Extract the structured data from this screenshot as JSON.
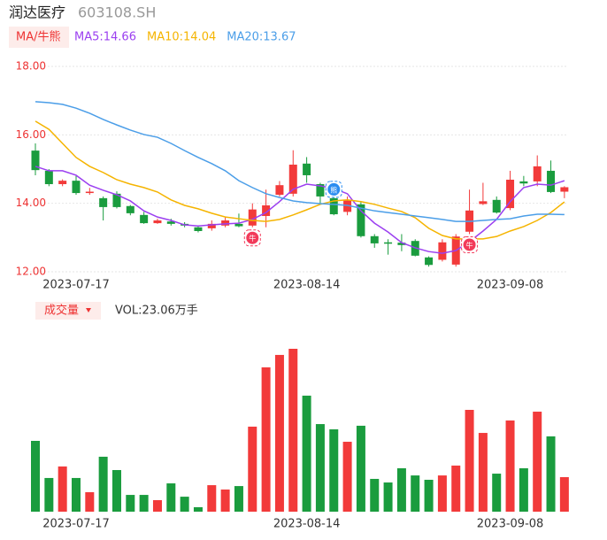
{
  "header": {
    "name": "润达医疗",
    "code": "603108.SH",
    "ma_tab": "MA/牛熊"
  },
  "chart_data": [
    {
      "type": "candlestick",
      "categories": [
        null,
        null,
        null,
        "2023-07-17",
        null,
        null,
        null,
        null,
        null,
        null,
        null,
        null,
        null,
        null,
        null,
        null,
        null,
        null,
        null,
        null,
        "2023-08-14",
        null,
        null,
        null,
        null,
        null,
        null,
        null,
        null,
        null,
        null,
        null,
        null,
        null,
        null,
        "2023-09-08",
        null,
        null,
        null,
        null
      ],
      "open": [
        15.54,
        14.95,
        14.56,
        14.66,
        14.3,
        14.15,
        14.28,
        13.92,
        13.66,
        13.42,
        13.47,
        13.4,
        13.3,
        13.27,
        13.35,
        13.4,
        13.35,
        13.63,
        14.25,
        14.28,
        15.16,
        14.56,
        14.15,
        13.75,
        13.97,
        13.04,
        12.86,
        12.85,
        12.9,
        12.42,
        12.35,
        12.21,
        13.17,
        13.98,
        14.1,
        13.86,
        14.64,
        14.64,
        14.95,
        14.34
      ],
      "high": [
        15.75,
        15.0,
        14.7,
        14.8,
        14.45,
        14.2,
        14.35,
        13.95,
        13.75,
        13.55,
        13.55,
        13.45,
        13.32,
        13.5,
        13.6,
        13.7,
        14.0,
        14.4,
        14.65,
        15.55,
        15.35,
        14.6,
        14.2,
        14.2,
        14.05,
        13.1,
        12.95,
        13.1,
        12.95,
        12.45,
        12.95,
        13.1,
        14.4,
        14.6,
        14.2,
        14.95,
        14.8,
        15.4,
        15.25,
        14.5
      ],
      "low": [
        14.82,
        14.5,
        14.5,
        14.25,
        14.25,
        13.5,
        13.85,
        13.65,
        13.4,
        13.4,
        13.35,
        13.3,
        13.15,
        13.2,
        13.3,
        13.3,
        13.3,
        13.3,
        14.2,
        14.2,
        14.6,
        14.0,
        13.65,
        13.65,
        13.0,
        12.7,
        12.5,
        12.6,
        12.45,
        12.15,
        12.3,
        12.15,
        13.1,
        13.95,
        13.7,
        13.8,
        14.5,
        14.5,
        14.3,
        14.15
      ],
      "close": [
        14.97,
        14.56,
        14.66,
        14.3,
        14.34,
        13.89,
        13.89,
        13.71,
        13.42,
        13.5,
        13.4,
        13.35,
        13.19,
        13.4,
        13.5,
        13.33,
        13.82,
        13.94,
        14.53,
        15.13,
        14.82,
        14.2,
        13.68,
        14.08,
        13.04,
        12.83,
        12.82,
        12.78,
        12.47,
        12.2,
        12.86,
        13.03,
        13.79,
        14.06,
        13.73,
        14.69,
        14.58,
        15.08,
        14.33,
        14.47
      ],
      "up_color": "#f23a3a",
      "down_color": "#1a9c3e",
      "series": [
        {
          "name": "MA5:14.66",
          "color": "#9b3ff0",
          "values": [
            15.08,
            14.95,
            14.95,
            14.82,
            14.53,
            14.38,
            14.25,
            14.07,
            13.78,
            13.6,
            13.5,
            13.37,
            13.34,
            13.37,
            13.4,
            13.42,
            13.53,
            13.73,
            14.05,
            14.41,
            14.56,
            14.51,
            14.43,
            14.28,
            13.78,
            13.42,
            13.16,
            12.85,
            12.7,
            12.59,
            12.54,
            12.62,
            12.88,
            13.19,
            13.53,
            14.05,
            14.46,
            14.56,
            14.53,
            14.66
          ]
        },
        {
          "name": "MA10:14.04",
          "color": "#f5b400",
          "values": [
            16.4,
            16.16,
            15.75,
            15.34,
            15.08,
            14.9,
            14.69,
            14.56,
            14.46,
            14.33,
            14.1,
            13.94,
            13.84,
            13.71,
            13.6,
            13.55,
            13.5,
            13.47,
            13.53,
            13.66,
            13.81,
            13.97,
            14.07,
            14.1,
            14.05,
            13.97,
            13.86,
            13.76,
            13.58,
            13.27,
            13.06,
            12.96,
            12.96,
            12.96,
            13.03,
            13.19,
            13.32,
            13.5,
            13.73,
            14.04
          ]
        },
        {
          "name": "MA20:13.67",
          "color": "#4b9ee8",
          "values": [
            16.97,
            16.94,
            16.89,
            16.78,
            16.63,
            16.45,
            16.29,
            16.14,
            16.01,
            15.93,
            15.75,
            15.54,
            15.34,
            15.16,
            14.95,
            14.66,
            14.46,
            14.28,
            14.17,
            14.07,
            14.02,
            13.99,
            13.97,
            13.94,
            13.86,
            13.78,
            13.73,
            13.68,
            13.63,
            13.58,
            13.53,
            13.47,
            13.47,
            13.5,
            13.53,
            13.55,
            13.63,
            13.68,
            13.68,
            13.67
          ]
        }
      ],
      "signals": [
        {
          "index": 16,
          "label": "牛",
          "color": "#f23a5a"
        },
        {
          "index": 22,
          "label": "熊",
          "color": "#2a8cf0"
        },
        {
          "index": 32,
          "label": "牛",
          "color": "#f23a5a"
        }
      ],
      "ylim": [
        12,
        18
      ],
      "yticks": [
        {
          "value": 18,
          "label": "18.00"
        },
        {
          "value": 16,
          "label": "16.00"
        },
        {
          "value": 14,
          "label": "14.00"
        },
        {
          "value": 12,
          "label": "12.00"
        }
      ],
      "grid": true
    },
    {
      "type": "bar",
      "tab": "成交量",
      "label": "VOL:23.06万手",
      "values": [
        47.3,
        22.5,
        30.2,
        22.5,
        13,
        36.7,
        27.8,
        11.2,
        11.2,
        7.7,
        18.9,
        10,
        3,
        17.7,
        14.8,
        17.1,
        56.8,
        96.4,
        104.7,
        108.8,
        77.5,
        58.5,
        55,
        46.7,
        57.4,
        21.9,
        19.5,
        29,
        24.2,
        21.3,
        24.2,
        30.8,
        68,
        52.6,
        25.4,
        60.9,
        29,
        66.8,
        50.3,
        23.06
      ]
    }
  ]
}
